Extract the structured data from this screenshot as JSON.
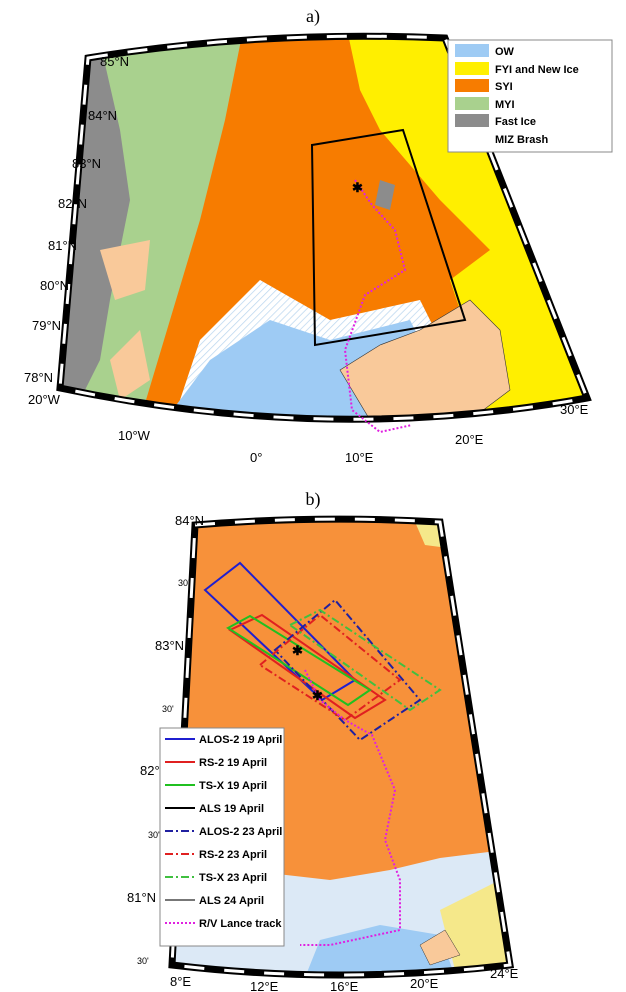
{
  "panel_a": {
    "label": "a)",
    "legend": [
      "OW",
      "FYI and New Ice",
      "SYI",
      "MYI",
      "Fast Ice",
      "MIZ Brash"
    ],
    "lat_labels": [
      "85°N",
      "84°N",
      "83°N",
      "82°N",
      "81°N",
      "80°N",
      "79°N",
      "78°N"
    ],
    "lon_labels": [
      "20°W",
      "10°W",
      "0°",
      "10°E",
      "20°E",
      "30°E"
    ]
  },
  "panel_b": {
    "label": "b)",
    "legend": [
      "ALOS-2 19 April",
      "RS-2 19 April",
      "TS-X 19 April",
      "ALS 19 April",
      "ALOS-2 23 April",
      "RS-2 23 April",
      "TS-X 23 April",
      "ALS 24 April",
      "R/V Lance track"
    ],
    "lat_labels": [
      "84°N",
      "30'",
      "83°N",
      "30'",
      "82°N",
      "30'",
      "81°N",
      "30'"
    ],
    "lon_labels": [
      "8°E",
      "12°E",
      "16°E",
      "20°E",
      "24°E"
    ]
  }
}
